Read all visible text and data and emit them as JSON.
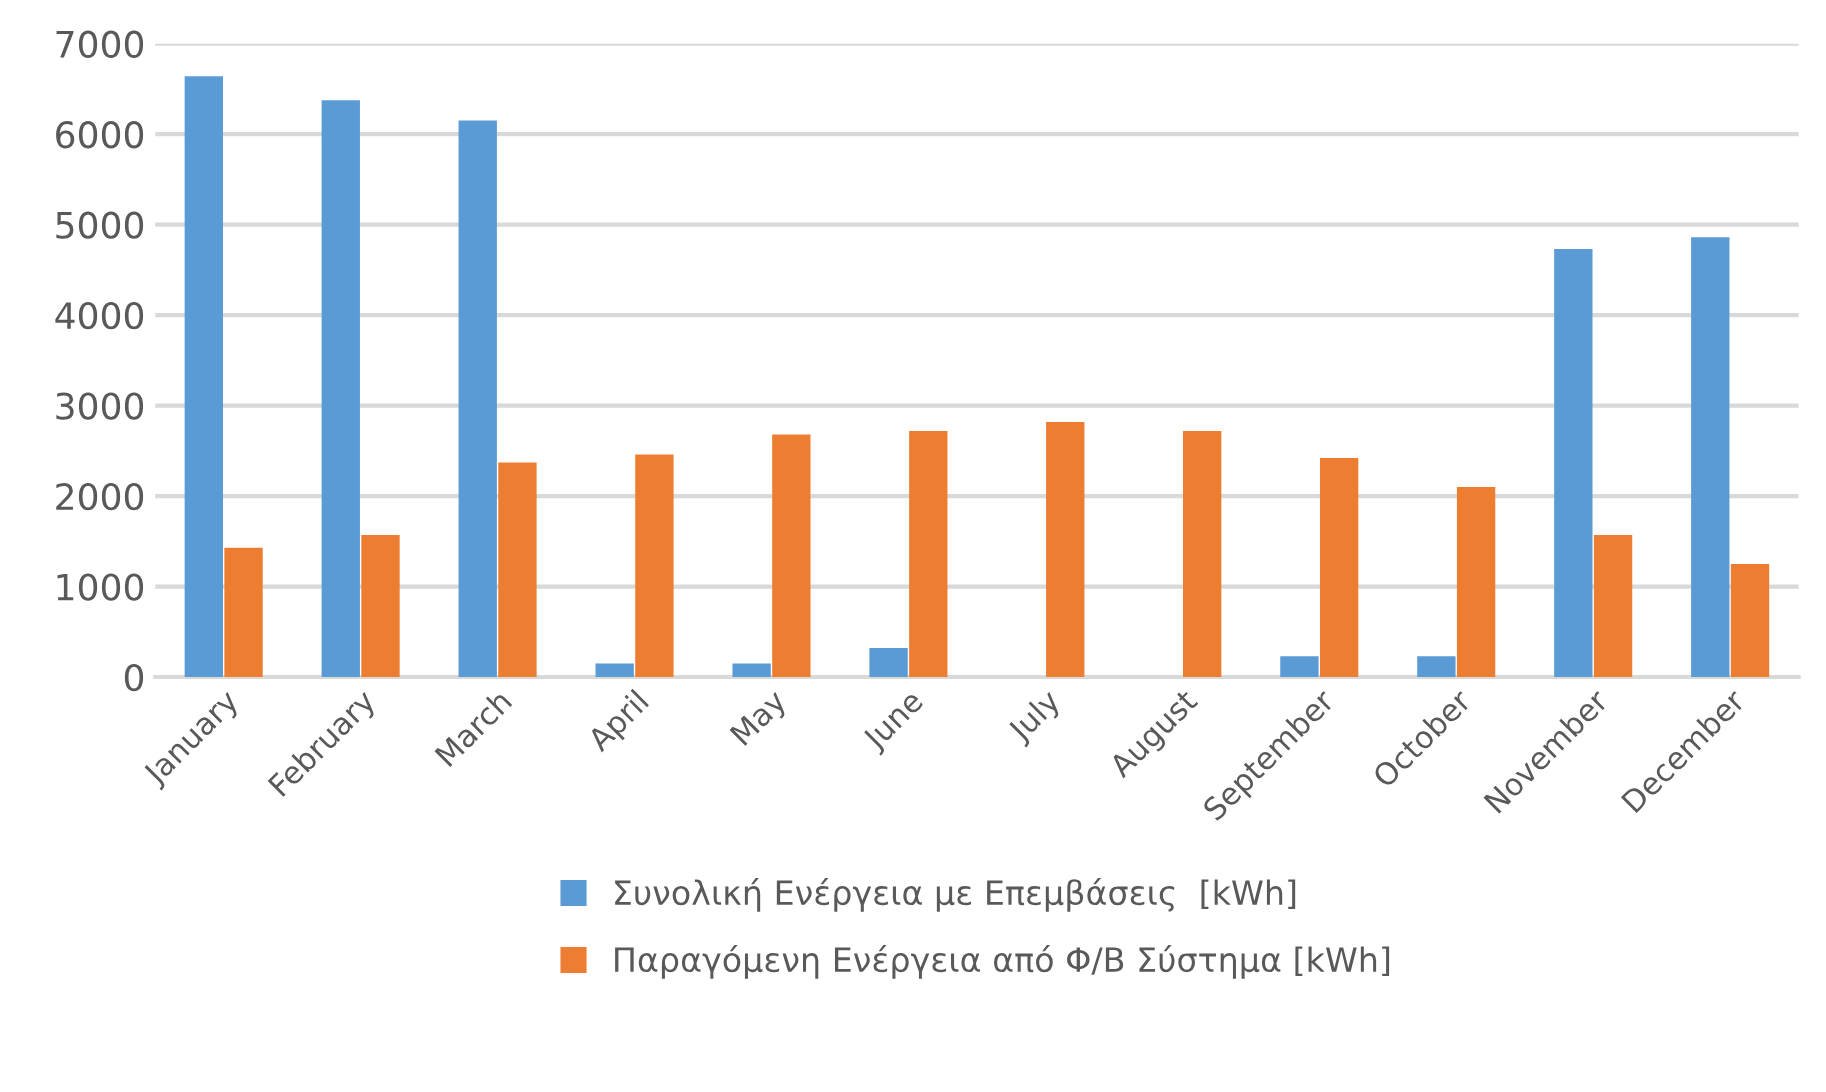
{
  "chart_data": {
    "type": "bar",
    "categories": [
      "January",
      "February",
      "March",
      "April",
      "May",
      "June",
      "July",
      "August",
      "September",
      "October",
      "November",
      "December"
    ],
    "series": [
      {
        "name": "Συνολική Ενέργεια με Επεμβάσεις  [kWh]",
        "color": "#5b9bd5",
        "values": [
          6640,
          6375,
          6150,
          150,
          150,
          320,
          0,
          0,
          230,
          230,
          4730,
          4860
        ]
      },
      {
        "name": "Παραγόμενη Ενέργεια από Φ/Β Σύστημα [kWh]",
        "color": "#ed7d31",
        "values": [
          1430,
          1570,
          2370,
          2460,
          2680,
          2720,
          2820,
          2720,
          2420,
          2100,
          1570,
          1250
        ]
      }
    ],
    "ylim": [
      0,
      7000
    ],
    "yticks": [
      0,
      1000,
      2000,
      3000,
      4000,
      5000,
      6000,
      7000
    ],
    "grid": "y",
    "legend": "bottom"
  }
}
